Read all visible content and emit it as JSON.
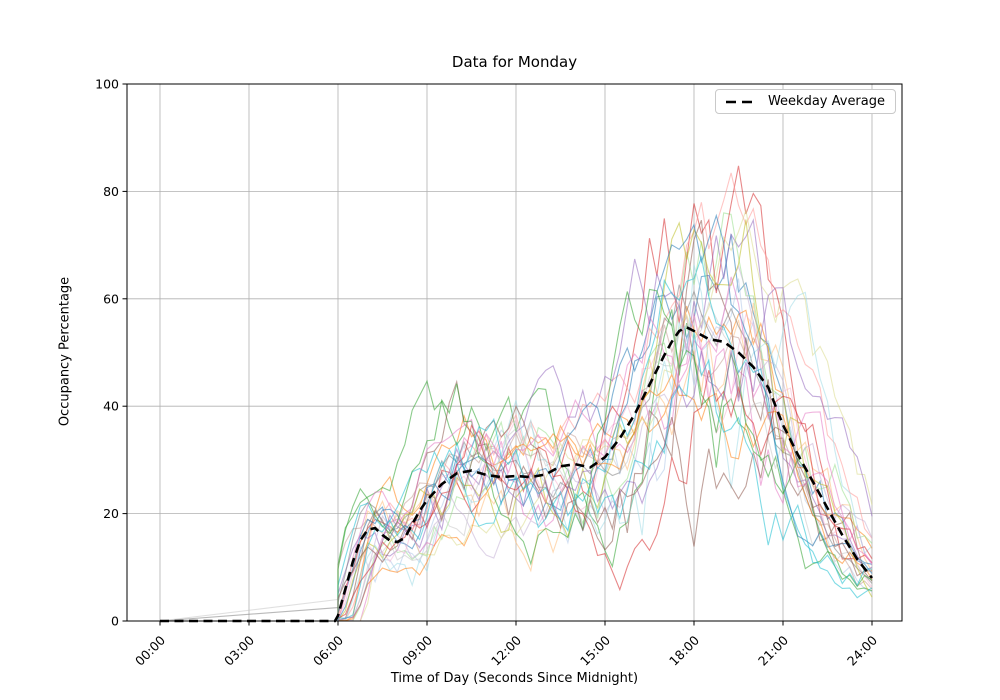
{
  "chart_data": {
    "type": "line",
    "title": "Data for Monday",
    "xlabel": "Time of Day (Seconds Since Midnight)",
    "ylabel": "Occupancy Percentage",
    "ylim": [
      0,
      100
    ],
    "xlim_hours": [
      0,
      24
    ],
    "grid": true,
    "colors": {
      "background": "#ffffff",
      "grid": "#b0b0b0",
      "axis": "#000000",
      "average_line": "#000000"
    },
    "y_tick_values": [
      0,
      20,
      40,
      60,
      80,
      100
    ],
    "y_tick_labels": [
      "0",
      "20",
      "40",
      "60",
      "80",
      "100"
    ],
    "x_tick_hours": [
      0,
      3,
      6,
      9,
      12,
      15,
      18,
      21,
      24
    ],
    "x_tick_labels": [
      "00:00",
      "03:00",
      "06:00",
      "09:00",
      "12:00",
      "15:00",
      "18:00",
      "21:00",
      "24:00"
    ],
    "legend": {
      "position": "upper right",
      "entries": [
        {
          "label": "Weekday Average",
          "style": "dashed",
          "color": "#000000"
        }
      ]
    },
    "average_series": {
      "name": "Weekday Average",
      "color": "#000000",
      "line_style": "dashed",
      "line_width": 2.6,
      "t_hours": [
        0,
        5.9,
        6.0,
        6.25,
        6.5,
        6.75,
        7,
        7.25,
        7.5,
        7.75,
        8,
        8.25,
        8.5,
        8.75,
        9,
        9.25,
        9.5,
        9.75,
        10,
        10.5,
        11,
        11.5,
        12,
        12.5,
        13,
        13.5,
        14,
        14.5,
        15,
        15.5,
        16,
        16.5,
        17,
        17.25,
        17.5,
        17.75,
        18,
        18.5,
        19,
        19.5,
        20,
        20.5,
        21,
        21.5,
        22,
        22.5,
        23,
        23.5,
        24
      ],
      "values": [
        0,
        0,
        1,
        6,
        11,
        15,
        17,
        17.3,
        16,
        15,
        14.7,
        15.5,
        18,
        20.5,
        22.5,
        24,
        25.5,
        26.5,
        27.5,
        28,
        27.2,
        26.8,
        27,
        26.8,
        27.3,
        28.8,
        29.2,
        28.6,
        30.5,
        34,
        38.5,
        44,
        49.5,
        52,
        54,
        54.7,
        54,
        52.5,
        52,
        50,
        47.3,
        43.5,
        36.5,
        31,
        26,
        21,
        16,
        11.5,
        8
      ]
    },
    "individual_series": {
      "count": 28,
      "opacity": 0.55,
      "line_width": 1.1,
      "start_hour": 6,
      "step_hours": 0.25,
      "peak_value_range": [
        36,
        79
      ],
      "palette": [
        "#1f77b4",
        "#aec7e8",
        "#ff7f0e",
        "#ffbb78",
        "#2ca02c",
        "#98df8a",
        "#d62728",
        "#ff9896",
        "#9467bd",
        "#c5b0d5",
        "#8c564b",
        "#c49c94",
        "#e377c2",
        "#f7b6d2",
        "#7f7f7f",
        "#c7c7c7",
        "#bcbd22",
        "#dbdb8d",
        "#17becf",
        "#9edae5",
        "#1f77b4",
        "#ff7f0e",
        "#2ca02c",
        "#d62728",
        "#9467bd",
        "#8c564b",
        "#e377c2",
        "#17becf"
      ],
      "seeds": [
        11,
        23,
        37,
        41,
        53,
        67,
        71,
        83,
        97,
        101,
        113,
        127,
        131,
        139,
        149,
        151,
        163,
        167,
        173,
        179,
        181,
        191,
        193,
        197,
        199,
        211,
        223,
        227
      ],
      "time_shifts_hours": [
        0.2,
        -0.3,
        0.5,
        0.1,
        -0.5,
        0.7,
        0.0,
        0.4,
        -0.2,
        0.6,
        0.3,
        -0.4,
        0.8,
        0.1,
        -0.1,
        0.5,
        0.2,
        0.9,
        -0.3,
        0.4,
        0.0,
        0.6,
        -0.5,
        0.3,
        0.7,
        -0.2,
        0.1,
        0.5
      ],
      "noise_amps": [
        0.7,
        0.9,
        0.6,
        0.8,
        1.0,
        0.7,
        0.9,
        0.6,
        0.8,
        0.7,
        1.0,
        0.6,
        0.9,
        0.8,
        0.5,
        0.7,
        0.9,
        0.6,
        0.8,
        1.0,
        0.7,
        0.6,
        0.9,
        0.8,
        0.7,
        1.0,
        0.6,
        0.8
      ],
      "pre_dawn_ramp": {
        "series_indices": [
          14,
          15
        ],
        "end_values": [
          2.5,
          4
        ]
      }
    }
  }
}
